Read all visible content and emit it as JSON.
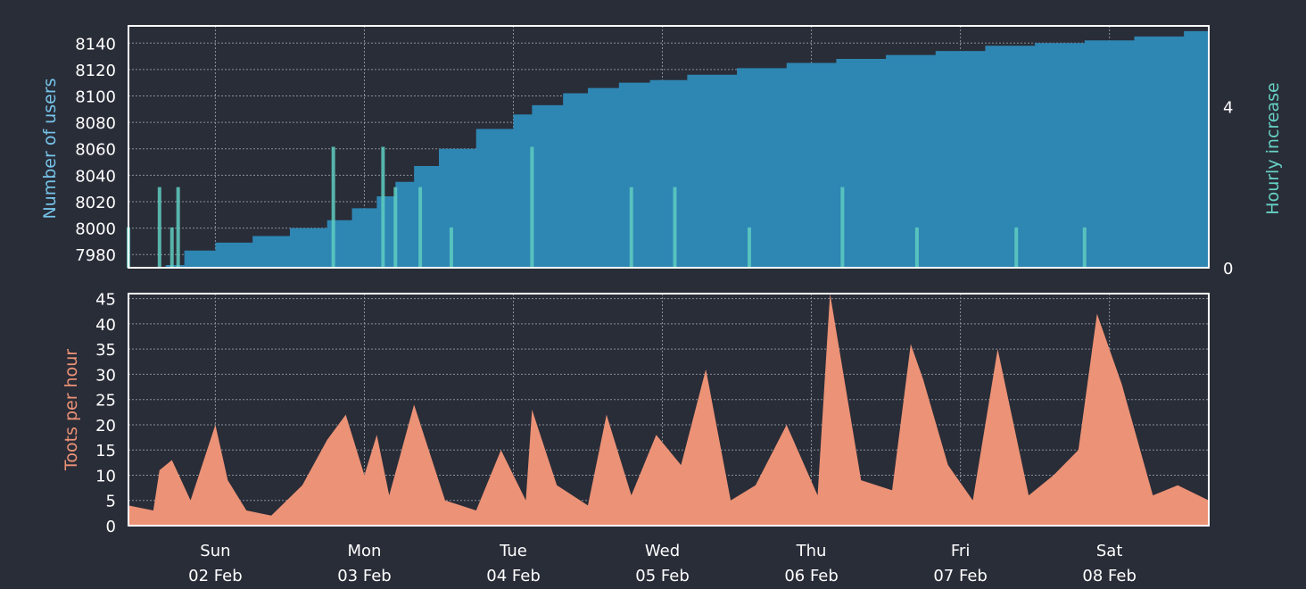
{
  "colors": {
    "background": "#292d38",
    "frame": "#ffffff",
    "grid": "#8a8f99",
    "users": "#2e86b3",
    "hourly": "#5fcdc0",
    "toots": "#ec9276",
    "users_label": "#76c4ea",
    "hourly_label": "#66d1c4",
    "toots_label": "#ec9276"
  },
  "chart_data": [
    {
      "type": "area",
      "ylabel": "Number of users",
      "y2label": "Hourly increase",
      "ylim": [
        7970,
        8153
      ],
      "y2lim": [
        0,
        6
      ],
      "yticks": [
        "7980",
        "8000",
        "8020",
        "8040",
        "8060",
        "8080",
        "8100",
        "8120",
        "8140"
      ],
      "y2ticks": [
        "0",
        "4"
      ],
      "grid": true,
      "series": [
        {
          "name": "Number of users",
          "x": [
            "2020-02-01 10:00",
            "2020-02-01 12:00",
            "2020-02-01 16:00",
            "2020-02-01 19:00",
            "2020-02-02 00:00",
            "2020-02-02 06:00",
            "2020-02-02 12:00",
            "2020-02-02 18:00",
            "2020-02-02 22:00",
            "2020-02-03 02:00",
            "2020-02-03 05:00",
            "2020-02-03 08:00",
            "2020-02-03 12:00",
            "2020-02-03 18:00",
            "2020-02-04 00:00",
            "2020-02-04 03:00",
            "2020-02-04 08:00",
            "2020-02-04 12:00",
            "2020-02-04 17:00",
            "2020-02-04 22:00",
            "2020-02-05 04:00",
            "2020-02-05 12:00",
            "2020-02-05 20:00",
            "2020-02-06 04:00",
            "2020-02-06 12:00",
            "2020-02-06 20:00",
            "2020-02-07 04:00",
            "2020-02-07 12:00",
            "2020-02-07 20:00",
            "2020-02-08 04:00",
            "2020-02-08 12:00",
            "2020-02-08 16:00"
          ],
          "values": [
            7970,
            7970,
            7972,
            7983,
            7989,
            7994,
            8000,
            8006,
            8015,
            8024,
            8035,
            8047,
            8060,
            8075,
            8086,
            8093,
            8102,
            8106,
            8110,
            8112,
            8116,
            8121,
            8125,
            8128,
            8131,
            8134,
            8138,
            8140,
            8142,
            8145,
            8149,
            8151
          ]
        },
        {
          "name": "Hourly increase",
          "x": [
            "2020-02-01 10:00",
            "2020-02-01 15:00",
            "2020-02-01 17:00",
            "2020-02-01 18:00",
            "2020-02-02 19:00",
            "2020-02-03 03:00",
            "2020-02-03 05:00",
            "2020-02-03 09:00",
            "2020-02-03 14:00",
            "2020-02-04 03:00",
            "2020-02-04 19:00",
            "2020-02-05 02:00",
            "2020-02-05 14:00",
            "2020-02-06 05:00",
            "2020-02-06 17:00",
            "2020-02-07 09:00",
            "2020-02-07 20:00"
          ],
          "values": [
            1,
            2,
            1,
            2,
            3,
            3,
            2,
            2,
            1,
            3,
            2,
            2,
            1,
            2,
            1,
            1,
            1
          ]
        }
      ]
    },
    {
      "type": "area",
      "ylabel": "Toots per hour",
      "ylim": [
        0,
        46
      ],
      "yticks": [
        "0",
        "5",
        "10",
        "15",
        "20",
        "25",
        "30",
        "35",
        "40",
        "45"
      ],
      "xticks": [
        [
          "Sun",
          "02 Feb"
        ],
        [
          "Mon",
          "03 Feb"
        ],
        [
          "Tue",
          "04 Feb"
        ],
        [
          "Wed",
          "05 Feb"
        ],
        [
          "Thu",
          "06 Feb"
        ],
        [
          "Fri",
          "07 Feb"
        ],
        [
          "Sat",
          "08 Feb"
        ]
      ],
      "xlim": [
        "2020-02-01 10:00",
        "2020-02-08 16:00"
      ],
      "grid": true,
      "series": [
        {
          "name": "Toots per hour",
          "x": [
            "2020-02-01 10:00",
            "2020-02-01 14:00",
            "2020-02-01 15:00",
            "2020-02-01 17:00",
            "2020-02-01 20:00",
            "2020-02-02 00:00",
            "2020-02-02 02:00",
            "2020-02-02 05:00",
            "2020-02-02 09:00",
            "2020-02-02 14:00",
            "2020-02-02 18:00",
            "2020-02-02 21:00",
            "2020-02-03 00:00",
            "2020-02-03 02:00",
            "2020-02-03 04:00",
            "2020-02-03 08:00",
            "2020-02-03 13:00",
            "2020-02-03 18:00",
            "2020-02-03 22:00",
            "2020-02-04 02:00",
            "2020-02-04 03:00",
            "2020-02-04 07:00",
            "2020-02-04 12:00",
            "2020-02-04 15:00",
            "2020-02-04 19:00",
            "2020-02-04 23:00",
            "2020-02-05 03:00",
            "2020-02-05 07:00",
            "2020-02-05 11:00",
            "2020-02-05 15:00",
            "2020-02-05 20:00",
            "2020-02-06 01:00",
            "2020-02-06 03:00",
            "2020-02-06 08:00",
            "2020-02-06 13:00",
            "2020-02-06 16:00",
            "2020-02-06 18:00",
            "2020-02-06 22:00",
            "2020-02-07 02:00",
            "2020-02-07 06:00",
            "2020-02-07 11:00",
            "2020-02-07 15:00",
            "2020-02-07 19:00",
            "2020-02-07 22:00",
            "2020-02-08 02:00",
            "2020-02-08 07:00",
            "2020-02-08 11:00",
            "2020-02-08 16:00"
          ],
          "values": [
            4,
            3,
            11,
            13,
            5,
            20,
            9,
            3,
            2,
            8,
            17,
            22,
            10,
            18,
            6,
            24,
            5,
            3,
            15,
            5,
            23,
            8,
            4,
            22,
            6,
            18,
            12,
            31,
            5,
            8,
            20,
            6,
            46,
            9,
            7,
            36,
            29,
            12,
            5,
            35,
            6,
            10,
            15,
            42,
            28,
            6,
            8,
            5
          ]
        }
      ]
    }
  ]
}
